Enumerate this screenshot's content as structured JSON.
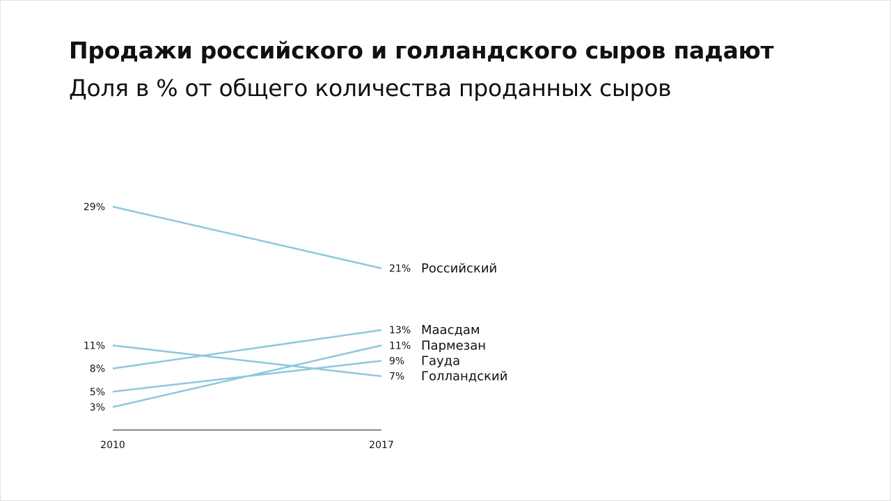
{
  "title": "Продажи российского и голландского сыров падают",
  "subtitle": "Доля в % от общего количества проданных сыров",
  "colors": {
    "line": "#8ec7de",
    "axis": "#111111",
    "text": "#111111"
  },
  "chart_data": {
    "type": "line",
    "title": "Продажи российского и голландского сыров падают",
    "subtitle": "Доля в % от общего количества проданных сыров",
    "x": [
      "2010",
      "2017"
    ],
    "ylim": [
      0,
      30
    ],
    "grid": false,
    "legend": "none",
    "unit": "%",
    "start_labels": [
      "29%",
      "11%",
      "8%",
      "5%",
      "3%"
    ],
    "end_labels": [
      "21%",
      "13%",
      "11%",
      "9%",
      "7%"
    ],
    "series": [
      {
        "name": "Российский",
        "values": [
          29,
          21
        ]
      },
      {
        "name": "Маасдам",
        "values": [
          8,
          13
        ]
      },
      {
        "name": "Пармезан",
        "values": [
          3,
          11
        ]
      },
      {
        "name": "Гауда",
        "values": [
          5,
          9
        ]
      },
      {
        "name": "Голландский",
        "values": [
          11,
          7
        ]
      }
    ]
  }
}
